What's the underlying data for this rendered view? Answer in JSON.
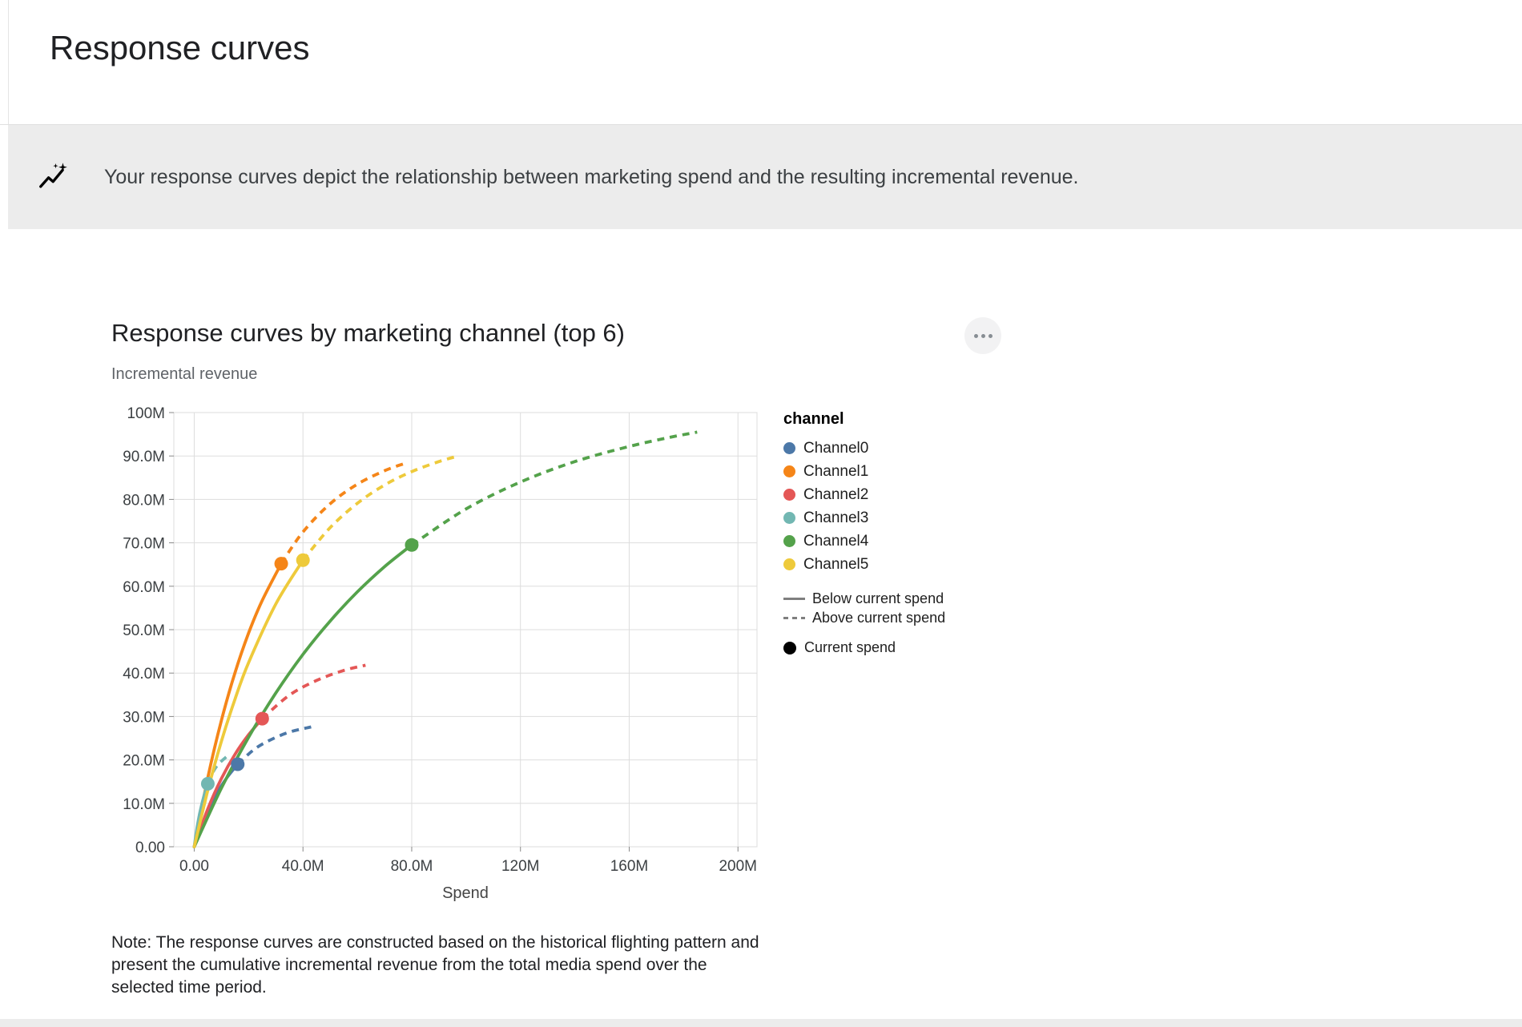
{
  "page": {
    "title": "Response curves",
    "banner_text": "Your response curves depict the relationship between marketing spend and the resulting incremental revenue.",
    "note_text": "Note: The response curves are constructed based on the historical flighting pattern and present the cumulative incremental revenue from the total media spend over the selected time period."
  },
  "chart_data": {
    "type": "line",
    "title": "Response curves by marketing channel (top 6)",
    "y_axis_title": "Incremental revenue",
    "xlabel": "Spend",
    "xlim": [
      -7.5,
      207
    ],
    "ylim": [
      0,
      100
    ],
    "grid": true,
    "legend_position": "right",
    "x_ticks": [
      {
        "v": 0,
        "label": "0.00"
      },
      {
        "v": 40,
        "label": "40.0M"
      },
      {
        "v": 80,
        "label": "80.0M"
      },
      {
        "v": 120,
        "label": "120M"
      },
      {
        "v": 160,
        "label": "160M"
      },
      {
        "v": 200,
        "label": "200M"
      }
    ],
    "y_ticks": [
      {
        "v": 0,
        "label": "0.00"
      },
      {
        "v": 10,
        "label": "10.0M"
      },
      {
        "v": 20,
        "label": "20.0M"
      },
      {
        "v": 30,
        "label": "30.0M"
      },
      {
        "v": 40,
        "label": "40.0M"
      },
      {
        "v": 50,
        "label": "50.0M"
      },
      {
        "v": 60,
        "label": "60.0M"
      },
      {
        "v": 70,
        "label": "70.0M"
      },
      {
        "v": 80,
        "label": "80.0M"
      },
      {
        "v": 90,
        "label": "90.0M"
      },
      {
        "v": 100,
        "label": "100M"
      }
    ],
    "legend": {
      "title": "channel",
      "channels": [
        {
          "name": "Channel0",
          "color": "#4c78a8"
        },
        {
          "name": "Channel1",
          "color": "#f58518"
        },
        {
          "name": "Channel2",
          "color": "#e45756"
        },
        {
          "name": "Channel3",
          "color": "#72b7b2"
        },
        {
          "name": "Channel4",
          "color": "#54a24b"
        },
        {
          "name": "Channel5",
          "color": "#eeca3b"
        }
      ],
      "line_styles": [
        {
          "dash": "solid",
          "label": "Below current spend"
        },
        {
          "dash": "dashed",
          "label": "Above current spend"
        }
      ],
      "marker": {
        "label": "Current spend",
        "color": "#000000"
      }
    },
    "series": [
      {
        "name": "Channel0",
        "color": "#4c78a8",
        "current_spend": {
          "x": 16,
          "y": 19
        },
        "below_current": [
          [
            0,
            0
          ],
          [
            4,
            6.7
          ],
          [
            8,
            11.9
          ],
          [
            12,
            15.9
          ],
          [
            16,
            19
          ]
        ],
        "above_current": [
          [
            16,
            19
          ],
          [
            22,
            22.4
          ],
          [
            28,
            24.6
          ],
          [
            35,
            26.4
          ],
          [
            43,
            27.6
          ]
        ]
      },
      {
        "name": "Channel1",
        "color": "#f58518",
        "current_spend": {
          "x": 32,
          "y": 65.2
        },
        "below_current": [
          [
            0,
            0
          ],
          [
            5,
            15.9
          ],
          [
            10,
            29.1
          ],
          [
            15,
            40.1
          ],
          [
            20,
            49.2
          ],
          [
            25,
            56.7
          ],
          [
            32,
            65.2
          ]
        ],
        "above_current": [
          [
            32,
            65.2
          ],
          [
            40,
            72.5
          ],
          [
            50,
            79.0
          ],
          [
            60,
            83.5
          ],
          [
            70,
            86.6
          ],
          [
            77,
            88.2
          ]
        ]
      },
      {
        "name": "Channel2",
        "color": "#e45756",
        "current_spend": {
          "x": 25,
          "y": 29.5
        },
        "below_current": [
          [
            0,
            0
          ],
          [
            5,
            8.7
          ],
          [
            10,
            15.7
          ],
          [
            15,
            21.3
          ],
          [
            20,
            25.8
          ],
          [
            25,
            29.5
          ]
        ],
        "above_current": [
          [
            25,
            29.5
          ],
          [
            35,
            34.9
          ],
          [
            45,
            38.3
          ],
          [
            55,
            40.6
          ],
          [
            63,
            41.8
          ]
        ]
      },
      {
        "name": "Channel3",
        "color": "#72b7b2",
        "current_spend": {
          "x": 5,
          "y": 14.5
        },
        "below_current": [
          [
            0,
            0
          ],
          [
            1,
            4.2
          ],
          [
            2,
            7.6
          ],
          [
            3,
            10.3
          ],
          [
            4,
            12.6
          ],
          [
            5,
            14.5
          ]
        ],
        "above_current": [
          [
            5,
            14.5
          ],
          [
            7,
            17.3
          ],
          [
            9,
            19.1
          ],
          [
            12,
            20.8
          ]
        ]
      },
      {
        "name": "Channel4",
        "color": "#54a24b",
        "current_spend": {
          "x": 80,
          "y": 69.5
        },
        "below_current": [
          [
            0,
            0
          ],
          [
            10,
            13.5
          ],
          [
            20,
            25.2
          ],
          [
            30,
            35.4
          ],
          [
            40,
            44.3
          ],
          [
            50,
            52.0
          ],
          [
            60,
            58.7
          ],
          [
            70,
            64.5
          ],
          [
            80,
            69.5
          ]
        ],
        "above_current": [
          [
            80,
            69.5
          ],
          [
            100,
            77.8
          ],
          [
            120,
            84.0
          ],
          [
            140,
            88.7
          ],
          [
            160,
            92.2
          ],
          [
            175,
            94.3
          ],
          [
            185,
            95.5
          ]
        ]
      },
      {
        "name": "Channel5",
        "color": "#eeca3b",
        "current_spend": {
          "x": 40,
          "y": 66
        },
        "below_current": [
          [
            0,
            0
          ],
          [
            5,
            13.0
          ],
          [
            10,
            24.3
          ],
          [
            15,
            34.0
          ],
          [
            20,
            42.4
          ],
          [
            30,
            55.9
          ],
          [
            40,
            66.0
          ]
        ],
        "above_current": [
          [
            40,
            66.0
          ],
          [
            50,
            73.5
          ],
          [
            60,
            79.1
          ],
          [
            70,
            83.3
          ],
          [
            80,
            86.4
          ],
          [
            90,
            88.7
          ],
          [
            97,
            90.0
          ]
        ]
      }
    ]
  }
}
